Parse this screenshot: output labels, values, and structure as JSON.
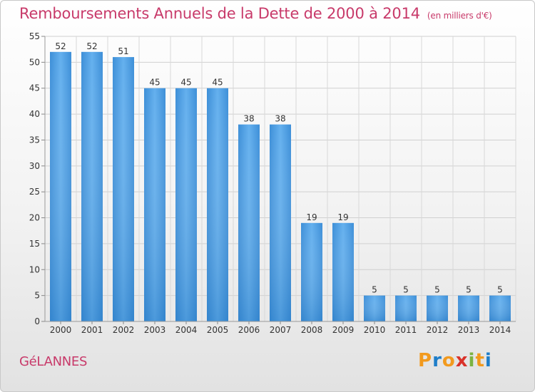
{
  "title": "Remboursements Annuels de la Dette de 2000 à 2014",
  "unit": "(en milliers d'€)",
  "commune": "GéLANNES",
  "brand": {
    "letters": [
      "P",
      "r",
      "o",
      "x",
      "i",
      "t",
      "i"
    ],
    "colors": [
      "#f29a1e",
      "#1f7ec9",
      "#f29a1e",
      "#d9322a",
      "#7cb342",
      "#f29a1e",
      "#1f7ec9"
    ]
  },
  "colors": {
    "bar": "#4a9be0",
    "bar_dark": "#2f7fc8",
    "title": "#c83a6a"
  },
  "chart_data": {
    "type": "bar",
    "categories": [
      "2000",
      "2001",
      "2002",
      "2003",
      "2004",
      "2005",
      "2006",
      "2007",
      "2008",
      "2009",
      "2010",
      "2011",
      "2012",
      "2013",
      "2014"
    ],
    "values": [
      52,
      52,
      51,
      45,
      45,
      45,
      38,
      38,
      19,
      19,
      5,
      5,
      5,
      5,
      5
    ],
    "title": "Remboursements Annuels de la Dette de 2000 à 2014",
    "xlabel": "",
    "ylabel": "",
    "ylim": [
      0,
      55
    ],
    "yticks": [
      0,
      5,
      10,
      15,
      20,
      25,
      30,
      35,
      40,
      45,
      50,
      55
    ],
    "grid": true
  }
}
